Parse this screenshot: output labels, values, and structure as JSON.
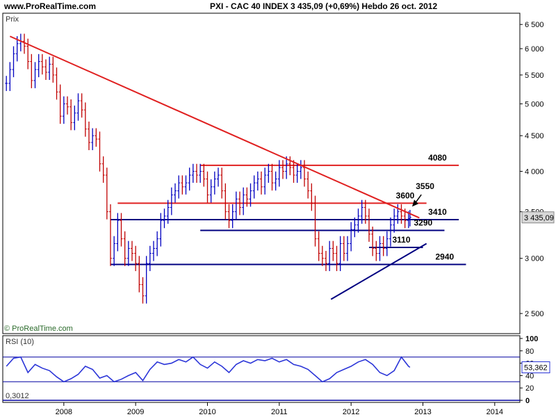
{
  "site": "www.ProRealTime.com",
  "header": {
    "title": "PXI - CAC 40 INDEX    3 435,09 (+0,69%)    Hebdo  26 oct. 2012"
  },
  "colors": {
    "trend_red": "#e02020",
    "support_navy": "#000080",
    "candles": "#0000c0",
    "candles_down": "#c00000",
    "rsi_line": "#2b35d8",
    "price_box": "#d8d8d8"
  },
  "chart_data": [
    {
      "type": "line",
      "title": "Prix",
      "ylabel": "Prix",
      "scale": "log",
      "ylim": [
        2350,
        6700
      ],
      "y_ticks": [
        "2 500",
        "3 000",
        "3 500",
        "4 000",
        "4 500",
        "5 000",
        "5 500",
        "6 000",
        "6 500"
      ],
      "y_tick_values": [
        2500,
        3000,
        3500,
        4000,
        4500,
        5000,
        5500,
        6000,
        6500
      ],
      "x_ticks": [
        "2008",
        "2009",
        "2010",
        "2011",
        "2012",
        "2013",
        "2014"
      ],
      "x_tick_values": [
        2008,
        2009,
        2010,
        2011,
        2012,
        2013,
        2014
      ],
      "xlim": [
        2007.15,
        2014.35
      ],
      "last_price_label": "3 435,09",
      "last_price": 3435.09,
      "series": [
        {
          "x": [
            2007.2,
            2007.25,
            2007.3,
            2007.35,
            2007.4,
            2007.45,
            2007.5,
            2007.55,
            2007.6,
            2007.65,
            2007.7,
            2007.75,
            2007.8,
            2007.85,
            2007.9,
            2007.95,
            2008.0,
            2008.05,
            2008.1,
            2008.15,
            2008.2,
            2008.25,
            2008.3,
            2008.35,
            2008.4,
            2008.45,
            2008.5,
            2008.55,
            2008.6,
            2008.65,
            2008.7,
            2008.75,
            2008.8,
            2008.85,
            2008.9,
            2008.95,
            2009.0,
            2009.05,
            2009.1,
            2009.15,
            2009.2,
            2009.25,
            2009.3,
            2009.35,
            2009.4,
            2009.45,
            2009.5,
            2009.55,
            2009.6,
            2009.65,
            2009.7,
            2009.75,
            2009.8,
            2009.85,
            2009.9,
            2009.95,
            2010.0,
            2010.05,
            2010.1,
            2010.15,
            2010.2,
            2010.25,
            2010.3,
            2010.35,
            2010.4,
            2010.45,
            2010.5,
            2010.55,
            2010.6,
            2010.65,
            2010.7,
            2010.75,
            2010.8,
            2010.85,
            2010.9,
            2010.95,
            2011.0,
            2011.05,
            2011.1,
            2011.15,
            2011.2,
            2011.25,
            2011.3,
            2011.35,
            2011.4,
            2011.45,
            2011.5,
            2011.55,
            2011.6,
            2011.65,
            2011.7,
            2011.75,
            2011.8,
            2011.85,
            2011.9,
            2011.95,
            2012.0,
            2012.05,
            2012.1,
            2012.15,
            2012.2,
            2012.25,
            2012.3,
            2012.35,
            2012.4,
            2012.45,
            2012.5,
            2012.55,
            2012.6,
            2012.65,
            2012.7,
            2012.75,
            2012.8,
            2012.82
          ],
          "values": [
            5350,
            5600,
            5900,
            6100,
            6150,
            6050,
            5750,
            5400,
            5600,
            5750,
            5650,
            5550,
            5700,
            5500,
            5200,
            4800,
            5000,
            4950,
            4700,
            4850,
            5050,
            4900,
            4600,
            4400,
            4500,
            4450,
            4100,
            3950,
            3500,
            3000,
            3150,
            3400,
            3200,
            3000,
            3100,
            3050,
            2950,
            2750,
            2650,
            2950,
            3050,
            3100,
            3200,
            3400,
            3450,
            3550,
            3700,
            3750,
            3850,
            3800,
            3850,
            3950,
            4000,
            3950,
            4000,
            3900,
            3700,
            3800,
            3900,
            3950,
            3750,
            3500,
            3400,
            3500,
            3650,
            3550,
            3700,
            3650,
            3750,
            3850,
            3900,
            3800,
            3950,
            4000,
            3850,
            3900,
            4050,
            4000,
            4100,
            4050,
            3950,
            4000,
            4050,
            3900,
            3750,
            3600,
            3200,
            3050,
            3000,
            2950,
            3100,
            3050,
            2950,
            3150,
            3050,
            3150,
            3300,
            3350,
            3450,
            3550,
            3450,
            3250,
            3100,
            3050,
            3150,
            3100,
            3200,
            3350,
            3450,
            3500,
            3450,
            3400,
            3420,
            3435.09
          ]
        }
      ],
      "trendlines": [
        {
          "name": "resistance-downtrend",
          "color": "red",
          "x": [
            2007.25,
            2012.95
          ],
          "y": [
            6250,
            3430
          ]
        },
        {
          "name": "support-uptrend",
          "color": "navy",
          "x": [
            2011.72,
            2013.05
          ],
          "y": [
            2620,
            3150
          ]
        }
      ],
      "levels": [
        {
          "label": "4080",
          "value": 4080,
          "color": "red",
          "x": [
            2009.9,
            2013.5
          ]
        },
        {
          "label": "3600",
          "value": 3600,
          "color": "red",
          "x": [
            2008.75,
            2013.05
          ]
        },
        {
          "label": "3410",
          "value": 3410,
          "color": "navy",
          "x": [
            2008.65,
            2013.5
          ]
        },
        {
          "label": "3290",
          "value": 3290,
          "color": "navy",
          "x": [
            2009.9,
            2013.3
          ]
        },
        {
          "label": "3110",
          "value": 3110,
          "color": "navy",
          "x": [
            2012.25,
            2013.0
          ]
        },
        {
          "label": "2940",
          "value": 2940,
          "color": "navy",
          "x": [
            2008.65,
            2013.6
          ]
        }
      ],
      "annotations": [
        {
          "label": "3550",
          "x": 2012.92,
          "y": 3560
        }
      ],
      "copyright": "© ProRealTime.com"
    },
    {
      "type": "line",
      "title": "RSI (10)",
      "ylim": [
        0,
        100
      ],
      "y_ticks": [
        "100",
        "80",
        "60",
        "40",
        "20",
        "0"
      ],
      "y_tick_values": [
        100,
        80,
        60,
        40,
        20,
        0
      ],
      "reference_lines": [
        70,
        30
      ],
      "last_value_label": "53,362",
      "last_value": 53.362,
      "corner_label": "0,3012",
      "series": [
        {
          "x": [
            2007.2,
            2007.3,
            2007.4,
            2007.5,
            2007.6,
            2007.7,
            2007.8,
            2007.9,
            2008.0,
            2008.1,
            2008.2,
            2008.3,
            2008.4,
            2008.5,
            2008.6,
            2008.7,
            2008.8,
            2008.9,
            2009.0,
            2009.1,
            2009.2,
            2009.3,
            2009.4,
            2009.5,
            2009.6,
            2009.7,
            2009.8,
            2009.9,
            2010.0,
            2010.1,
            2010.2,
            2010.3,
            2010.4,
            2010.5,
            2010.6,
            2010.7,
            2010.8,
            2010.9,
            2011.0,
            2011.1,
            2011.2,
            2011.3,
            2011.4,
            2011.5,
            2011.6,
            2011.7,
            2011.8,
            2011.9,
            2012.0,
            2012.1,
            2012.2,
            2012.3,
            2012.4,
            2012.5,
            2012.6,
            2012.7,
            2012.8,
            2012.82
          ],
          "values": [
            55,
            68,
            70,
            45,
            58,
            52,
            48,
            38,
            30,
            35,
            42,
            55,
            50,
            36,
            40,
            30,
            34,
            40,
            45,
            32,
            50,
            62,
            58,
            60,
            66,
            62,
            70,
            58,
            52,
            62,
            55,
            45,
            58,
            64,
            60,
            66,
            64,
            68,
            62,
            66,
            58,
            55,
            50,
            40,
            30,
            35,
            45,
            50,
            55,
            62,
            66,
            58,
            45,
            40,
            48,
            70,
            55,
            53.362
          ]
        }
      ]
    }
  ]
}
